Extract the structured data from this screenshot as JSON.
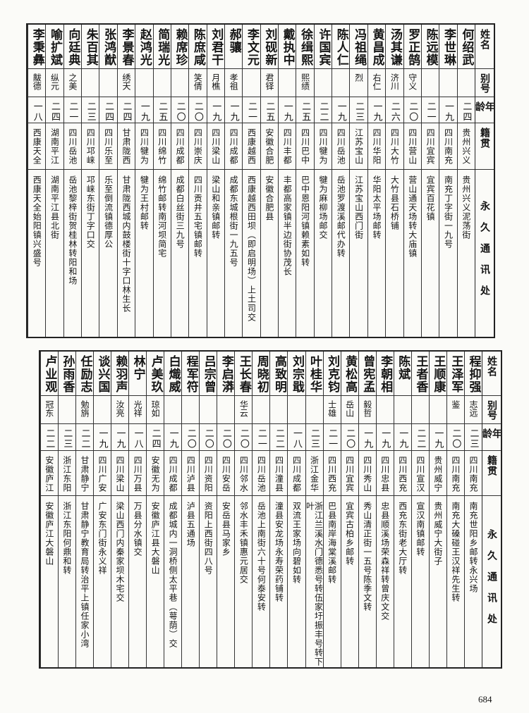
{
  "headers": {
    "name": "姓名",
    "alias": "别号",
    "age": "年龄",
    "origin": "籍贯",
    "address": "永久通讯处"
  },
  "tables": [
    {
      "rows": [
        {
          "name": "何绍武",
          "alias": "",
          "age": "二四",
          "origin": "贵州兴义",
          "address": "贵州兴义泥荡街"
        },
        {
          "name": "李世琳",
          "alias": "",
          "age": "一九",
          "origin": "四川南充",
          "address": "南充丁字街一九号"
        },
        {
          "name": "陈远模",
          "alias": "",
          "age": "二一",
          "origin": "四川宜宾",
          "address": "宜宾百花镇"
        },
        {
          "name": "罗正鹄",
          "alias": "守义",
          "age": "二〇",
          "origin": "四川营山",
          "address": "营山通天场转大庙镇"
        },
        {
          "name": "汤其谦",
          "alias": "济川",
          "age": "二六",
          "origin": "四川大竹",
          "address": "大竹县石桥铺"
        },
        {
          "name": "黄昌成",
          "alias": "右仁",
          "age": "一九",
          "origin": "四川华阳",
          "address": "华阳太平场邮转"
        },
        {
          "name": "冯祖绳",
          "alias": "烈",
          "age": "二三",
          "origin": "江苏宝山",
          "address": "江苏宝山西门街"
        },
        {
          "name": "陈人仁",
          "alias": "",
          "age": "一九",
          "origin": "四川岳池",
          "address": "岳池罗渡溪邮代办转"
        },
        {
          "name": "许国宾",
          "alias": "",
          "age": "二二",
          "origin": "四川犍为",
          "address": "犍为麻柳场邮交"
        },
        {
          "name": "徐缉熙",
          "alias": "熙绩",
          "age": "二五",
          "origin": "四川巴中",
          "address": "巴中恩阳河镇赖素如转"
        },
        {
          "name": "戴执中",
          "alias": "",
          "age": "一九",
          "origin": "四川丰都",
          "address": "丰都高家镇半边街协茂长"
        },
        {
          "name": "刘砚新",
          "alias": "君铎",
          "age": "二五",
          "origin": "安徽合肥",
          "address": "安徽合肥县"
        },
        {
          "name": "李文元",
          "alias": "",
          "age": "二一",
          "origin": "西康越西",
          "address": "西康越西田坝（即启明场）上土司交"
        },
        {
          "name": "郝骧",
          "alias": "孝祖",
          "age": "一九",
          "origin": "四川成都",
          "address": "成都东城根街一九五号"
        },
        {
          "name": "刘君干",
          "alias": "月樵",
          "age": "一九",
          "origin": "四川梁山",
          "address": "梁山和亲镇邮转"
        },
        {
          "name": "陈庶咸",
          "alias": "笑倩",
          "age": "二〇",
          "origin": "四川崇庆",
          "address": "四川贡井五宅镇邮转"
        },
        {
          "name": "赖席珍",
          "alias": "",
          "age": "二〇",
          "origin": "四川成都",
          "address": "成都白丝街三九号"
        },
        {
          "name": "简瑞光",
          "alias": "",
          "age": "二五",
          "origin": "四川绵竹",
          "address": "绵竹邮转南河坝简宅"
        },
        {
          "name": "赵鸿光",
          "alias": "",
          "age": "一九",
          "origin": "四川犍为",
          "address": "犍为王村邮转"
        },
        {
          "name": "李景春",
          "alias": "绣天",
          "age": "二四",
          "origin": "甘肃陇西",
          "address": "甘肃陇西城内鼓楼街十字口林生长"
        },
        {
          "name": "张鸿猷",
          "alias": "",
          "age": "二四",
          "origin": "四川乐至",
          "address": "乐至倒流镇德厚公"
        },
        {
          "name": "朱百其",
          "alias": "",
          "age": "二三",
          "origin": "四川邛崃",
          "address": "邛崃东街丁字口交"
        },
        {
          "name": "向廷典",
          "alias": "之美",
          "age": "二一",
          "origin": "四川岳池",
          "address": "岳池黎梓街贺桂林转阳和场"
        },
        {
          "name": "喻扩斌",
          "alias": "纵元",
          "age": "二四",
          "origin": "湖南平江",
          "address": "湖南平江县北街"
        },
        {
          "name": "李秉彝",
          "alias": "黻德",
          "age": "一八",
          "origin": "西康天全",
          "address": "西康天全始阳镇兴盛号"
        }
      ]
    },
    {
      "rows": [
        {
          "name": "程抑强",
          "alias": "志远",
          "age": "二三",
          "origin": "四川南充",
          "address": "南充世阳乡邮转永兴场"
        },
        {
          "name": "王泽军",
          "alias": "鉴",
          "age": "二〇",
          "origin": "四川南充",
          "address": "南充大磉碰王汉祥先生转"
        },
        {
          "name": "王顺康",
          "alias": "",
          "age": "一九",
          "origin": "贵州威宁",
          "address": "贵州威宁大街子"
        },
        {
          "name": "王者香",
          "alias": "",
          "age": "二二",
          "origin": "四川宣汉",
          "address": "宣汉南镇邮转"
        },
        {
          "name": "陈斌",
          "alias": "",
          "age": "一九",
          "origin": "四川西充",
          "address": "西充东街老大厅转"
        },
        {
          "name": "李朝相",
          "alias": "",
          "age": "一九",
          "origin": "四川忠县",
          "address": "忠县顺溪场荣森祥转曾庆文交"
        },
        {
          "name": "曾宪孟",
          "alias": "毅哲",
          "age": "一九",
          "origin": "四川秀山",
          "address": "秀山清正街一五号陈季文转"
        },
        {
          "name": "黄松高",
          "alias": "岳山",
          "age": "二〇",
          "origin": "四川宜宾",
          "address": "宜宾古柏乡邮转"
        },
        {
          "name": "刘克钧",
          "alias": "士雄",
          "age": "二一",
          "origin": "四川西充",
          "address": "巴县南岸海棠溪邮转"
        },
        {
          "name": "叶桂华",
          "alias": "",
          "age": "二三",
          "origin": "浙江金华",
          "address": "浙江兰溪水门德悉号转伍家圩振丰号转下叶"
        },
        {
          "name": "刘宗戢",
          "alias": "",
          "age": "一八",
          "origin": "四川成都",
          "address": "双流王家场向碧如转"
        },
        {
          "name": "高致明",
          "alias": "",
          "age": "二二",
          "origin": "四川潼县",
          "address": "潼县安龙场永寿荣药铺转"
        },
        {
          "name": "周晓初",
          "alias": "",
          "age": "二一",
          "origin": "四川岳池",
          "address": "岳池上南街六十号何泰安转"
        },
        {
          "name": "王长春",
          "alias": "华云",
          "age": "二〇",
          "origin": "四川邻水",
          "address": "邻水丰禾镇惠元居交"
        },
        {
          "name": "李启漭",
          "alias": "",
          "age": "二〇",
          "origin": "四川安岳",
          "address": "安岳县马家乡"
        },
        {
          "name": "吕宗曾",
          "alias": "",
          "age": "二〇",
          "origin": "四川资阳",
          "address": "资阳上西街四八号"
        },
        {
          "name": "程军符",
          "alias": "",
          "age": "二〇",
          "origin": "四川泸县",
          "address": "泸县五通场"
        },
        {
          "name": "白熾威",
          "alias": "",
          "age": "一九",
          "origin": "四川成都",
          "address": "成都城内一洞桥侧太平巷（萼荫）交"
        },
        {
          "name": "卢美玖",
          "alias": "琼如",
          "age": "二四",
          "origin": "安徽无为",
          "address": "安徽庐江县大磐山"
        },
        {
          "name": "林宁",
          "alias": "光祥",
          "age": "一八",
          "origin": "四川万县",
          "address": "万县分水镇交"
        },
        {
          "name": "赖羽声",
          "alias": "汝亮",
          "age": "一九",
          "origin": "四川梁山",
          "address": "梁山西门内秦家坝木宅交"
        },
        {
          "name": "谈兴国",
          "alias": "",
          "age": "一九",
          "origin": "四川广安",
          "address": "广安东门街永义祥"
        },
        {
          "name": "任励志",
          "alias": "勉旃",
          "age": "二二",
          "origin": "甘肃静宁",
          "address": "甘肃静宁教育局转治平上镇任家小湾"
        },
        {
          "name": "孙雨香",
          "alias": "",
          "age": "二三",
          "origin": "浙江东阳",
          "address": "浙江东阳何鼎和转"
        },
        {
          "name": "卢业观",
          "alias": "冠东",
          "age": "二二",
          "origin": "安徽庐江",
          "address": "安徽庐江大磐山"
        }
      ]
    }
  ],
  "page_number": "684"
}
